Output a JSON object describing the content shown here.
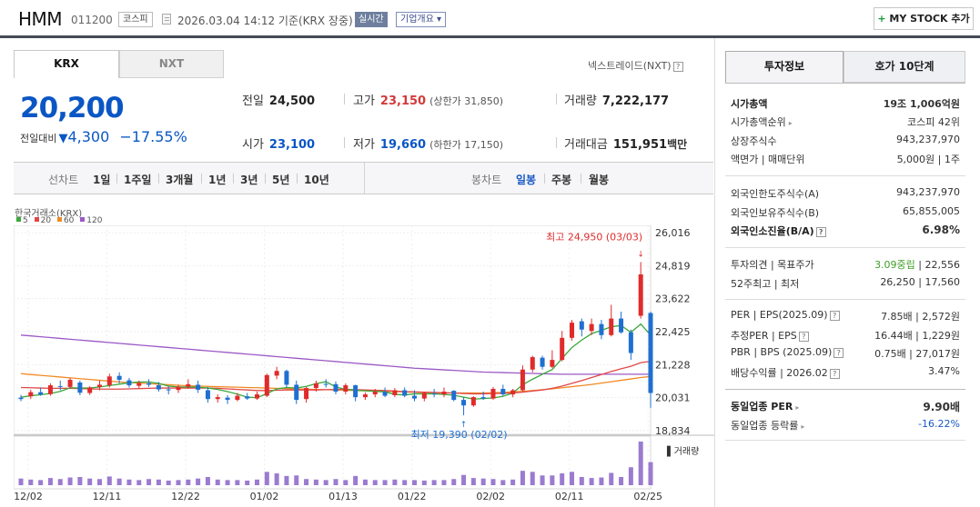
{
  "header": {
    "name": "HMM",
    "code": "011200",
    "market": "코스피",
    "date": "2026.03.04 14:12  기준(KRX 장중)",
    "realtime": "실시간",
    "overview": "기업개요 ▾",
    "mystock_plus": "+",
    "mystock_label": " MY STOCK 추가"
  },
  "tabs": {
    "krx": "KRX",
    "nxt": "NXT"
  },
  "nxt_link": "넥스트레이드(NXT)",
  "quote": {
    "price": "20,200",
    "change_label": "전일대비",
    "change_arrow": "▼",
    "change": "4,300",
    "change_pct": "−17.55%"
  },
  "stats": {
    "prev_close_label": "전일",
    "prev_close": "24,500",
    "open_label": "시가",
    "open": "23,100",
    "high_label": "고가",
    "high": "23,150",
    "upper_limit": "(상한가 31,850)",
    "low_label": "저가",
    "low": "19,660",
    "lower_limit": "(하한가 17,150)",
    "volume_label": "거래량",
    "volume": "7,222,177",
    "amount_label": "거래대금",
    "amount": "151,951",
    "amount_unit": "백만"
  },
  "chart_toolbar": {
    "periods_label": "선차트",
    "periods": [
      "1일",
      "1주일",
      "3개월",
      "1년",
      "3년",
      "5년",
      "10년"
    ],
    "candles_label": "봉차트",
    "candles": [
      "일봉",
      "주봉",
      "월봉"
    ],
    "active_candle": "일봉"
  },
  "chart_meta": {
    "exchange": "한국거래소(KRX)",
    "ma_colors": {
      "5": "#3aa83a",
      "20": "#e04848",
      "60": "#f08a24",
      "120": "#9b59c6"
    }
  },
  "chart_data": {
    "type": "candlestick",
    "legend": [
      "5",
      "20",
      "60",
      "120"
    ],
    "y_ticks": [
      "26,016",
      "24,819",
      "23,622",
      "22,425",
      "21,228",
      "20,031",
      "18,834"
    ],
    "ylim": [
      18834,
      26016
    ],
    "x_ticks": [
      "12/02",
      "12/11",
      "12/22",
      "01/02",
      "01/13",
      "01/22",
      "02/02",
      "02/11",
      "02/25"
    ],
    "high_annotation": "최고 24,950 (03/03)",
    "low_annotation": "최저 19,390 (02/02)",
    "volume_label": "거래량",
    "candles": [
      {
        "o": 20030,
        "h": 20130,
        "l": 19900,
        "c": 19980
      },
      {
        "o": 20080,
        "h": 20320,
        "l": 19980,
        "c": 20230
      },
      {
        "o": 20230,
        "h": 20400,
        "l": 20100,
        "c": 20140
      },
      {
        "o": 20160,
        "h": 20550,
        "l": 20100,
        "c": 20480
      },
      {
        "o": 20450,
        "h": 20650,
        "l": 20300,
        "c": 20430
      },
      {
        "o": 20420,
        "h": 20750,
        "l": 20350,
        "c": 20680
      },
      {
        "o": 20580,
        "h": 20650,
        "l": 20120,
        "c": 20210
      },
      {
        "o": 20200,
        "h": 20450,
        "l": 20130,
        "c": 20400
      },
      {
        "o": 20420,
        "h": 20650,
        "l": 20300,
        "c": 20500
      },
      {
        "o": 20480,
        "h": 20900,
        "l": 20400,
        "c": 20800
      },
      {
        "o": 20820,
        "h": 20950,
        "l": 20550,
        "c": 20680
      },
      {
        "o": 20660,
        "h": 20750,
        "l": 20400,
        "c": 20480
      },
      {
        "o": 20460,
        "h": 20650,
        "l": 20380,
        "c": 20560
      },
      {
        "o": 20560,
        "h": 20700,
        "l": 20420,
        "c": 20500
      },
      {
        "o": 20480,
        "h": 20600,
        "l": 20250,
        "c": 20330
      },
      {
        "o": 20330,
        "h": 20450,
        "l": 20150,
        "c": 20300
      },
      {
        "o": 20310,
        "h": 20500,
        "l": 20200,
        "c": 20430
      },
      {
        "o": 20430,
        "h": 20700,
        "l": 20350,
        "c": 20520
      },
      {
        "o": 20500,
        "h": 20650,
        "l": 20200,
        "c": 20320
      },
      {
        "o": 20300,
        "h": 20420,
        "l": 19850,
        "c": 19980
      },
      {
        "o": 19980,
        "h": 20150,
        "l": 19850,
        "c": 20050
      },
      {
        "o": 20030,
        "h": 20120,
        "l": 19800,
        "c": 19950
      },
      {
        "o": 19950,
        "h": 20200,
        "l": 19900,
        "c": 20100
      },
      {
        "o": 20080,
        "h": 20200,
        "l": 19950,
        "c": 20000
      },
      {
        "o": 20000,
        "h": 20250,
        "l": 19950,
        "c": 20150
      },
      {
        "o": 20100,
        "h": 20900,
        "l": 20050,
        "c": 20850
      },
      {
        "o": 20830,
        "h": 21150,
        "l": 20700,
        "c": 21000
      },
      {
        "o": 21000,
        "h": 21050,
        "l": 20400,
        "c": 20500
      },
      {
        "o": 20500,
        "h": 20650,
        "l": 19800,
        "c": 19950
      },
      {
        "o": 19980,
        "h": 20420,
        "l": 19850,
        "c": 20380
      },
      {
        "o": 20380,
        "h": 20650,
        "l": 20250,
        "c": 20550
      },
      {
        "o": 20530,
        "h": 20700,
        "l": 20400,
        "c": 20500
      },
      {
        "o": 20520,
        "h": 20620,
        "l": 20150,
        "c": 20250
      },
      {
        "o": 20250,
        "h": 20550,
        "l": 20150,
        "c": 20480
      },
      {
        "o": 20480,
        "h": 20500,
        "l": 19900,
        "c": 20050
      },
      {
        "o": 20050,
        "h": 20220,
        "l": 19950,
        "c": 20150
      },
      {
        "o": 20150,
        "h": 20350,
        "l": 20050,
        "c": 20250
      },
      {
        "o": 20240,
        "h": 20400,
        "l": 20050,
        "c": 20100
      },
      {
        "o": 20120,
        "h": 20380,
        "l": 20050,
        "c": 20300
      },
      {
        "o": 20300,
        "h": 20400,
        "l": 20050,
        "c": 20100
      },
      {
        "o": 20100,
        "h": 20300,
        "l": 19900,
        "c": 20000
      },
      {
        "o": 20000,
        "h": 20250,
        "l": 19900,
        "c": 20200
      },
      {
        "o": 20180,
        "h": 20350,
        "l": 20050,
        "c": 20150
      },
      {
        "o": 20150,
        "h": 20400,
        "l": 20050,
        "c": 20250
      },
      {
        "o": 20280,
        "h": 20300,
        "l": 19900,
        "c": 19950
      },
      {
        "o": 19950,
        "h": 20050,
        "l": 19390,
        "c": 19750
      },
      {
        "o": 19750,
        "h": 20080,
        "l": 19700,
        "c": 20050
      },
      {
        "o": 20050,
        "h": 20250,
        "l": 19950,
        "c": 20000
      },
      {
        "o": 20000,
        "h": 20420,
        "l": 19950,
        "c": 20350
      },
      {
        "o": 20350,
        "h": 20500,
        "l": 20100,
        "c": 20150
      },
      {
        "o": 20150,
        "h": 20350,
        "l": 20050,
        "c": 20300
      },
      {
        "o": 20300,
        "h": 21200,
        "l": 20250,
        "c": 21050
      },
      {
        "o": 21050,
        "h": 21550,
        "l": 20950,
        "c": 21500
      },
      {
        "o": 21480,
        "h": 21550,
        "l": 21050,
        "c": 21150
      },
      {
        "o": 21150,
        "h": 21750,
        "l": 21100,
        "c": 21400
      },
      {
        "o": 21400,
        "h": 22450,
        "l": 21350,
        "c": 22200
      },
      {
        "o": 22200,
        "h": 22850,
        "l": 22100,
        "c": 22750
      },
      {
        "o": 22800,
        "h": 22900,
        "l": 22250,
        "c": 22500
      },
      {
        "o": 22450,
        "h": 22900,
        "l": 22300,
        "c": 22700
      },
      {
        "o": 22700,
        "h": 22850,
        "l": 22150,
        "c": 22300
      },
      {
        "o": 22300,
        "h": 23400,
        "l": 22250,
        "c": 22900
      },
      {
        "o": 22900,
        "h": 23150,
        "l": 22350,
        "c": 22400
      },
      {
        "o": 22400,
        "h": 22500,
        "l": 21400,
        "c": 21650
      },
      {
        "o": 23000,
        "h": 24950,
        "l": 22900,
        "c": 24500
      },
      {
        "o": 23100,
        "h": 23150,
        "l": 19660,
        "c": 20200
      }
    ],
    "ma": {
      "5": [
        20050,
        20100,
        20140,
        20180,
        20260,
        20390,
        20380,
        20380,
        20420,
        20470,
        20520,
        20570,
        20600,
        20600,
        20550,
        20450,
        20420,
        20420,
        20410,
        20380,
        20330,
        20250,
        20160,
        20050,
        20030,
        20180,
        20350,
        20400,
        20380,
        20440,
        20540,
        20610,
        20420,
        20330,
        20300,
        20280,
        20260,
        20240,
        20150,
        20130,
        20170,
        20170,
        20170,
        20150,
        20120,
        20050,
        19980,
        20000,
        20020,
        20080,
        20200,
        20500,
        20700,
        20880,
        21050,
        21450,
        21850,
        22120,
        22350,
        22470,
        22600,
        22650,
        22400,
        22700,
        22300
      ],
      "20": [
        20400,
        20390,
        20380,
        20370,
        20370,
        20370,
        20360,
        20350,
        20340,
        20340,
        20340,
        20350,
        20360,
        20370,
        20380,
        20380,
        20380,
        20380,
        20380,
        20380,
        20370,
        20350,
        20330,
        20310,
        20290,
        20290,
        20300,
        20310,
        20310,
        20310,
        20310,
        20320,
        20330,
        20330,
        20320,
        20310,
        20300,
        20290,
        20270,
        20250,
        20240,
        20230,
        20220,
        20210,
        20200,
        20180,
        20170,
        20170,
        20180,
        20190,
        20200,
        20230,
        20270,
        20310,
        20370,
        20450,
        20550,
        20650,
        20760,
        20870,
        20980,
        21080,
        21170,
        21300,
        21350
      ],
      "60": [
        20900,
        20870,
        20840,
        20810,
        20780,
        20750,
        20720,
        20690,
        20660,
        20630,
        20600,
        20580,
        20560,
        20540,
        20520,
        20500,
        20480,
        20460,
        20450,
        20440,
        20430,
        20420,
        20410,
        20400,
        20390,
        20380,
        20370,
        20360,
        20350,
        20340,
        20330,
        20320,
        20310,
        20300,
        20290,
        20280,
        20270,
        20260,
        20250,
        20240,
        20230,
        20220,
        20210,
        20200,
        20200,
        20200,
        20200,
        20200,
        20210,
        20220,
        20240,
        20260,
        20290,
        20320,
        20350,
        20390,
        20430,
        20470,
        20510,
        20560,
        20610,
        20660,
        20710,
        20760,
        20800
      ],
      "120": [
        22300,
        22270,
        22240,
        22210,
        22180,
        22150,
        22120,
        22090,
        22060,
        22030,
        22000,
        21970,
        21940,
        21910,
        21880,
        21850,
        21820,
        21790,
        21760,
        21730,
        21700,
        21670,
        21640,
        21610,
        21580,
        21550,
        21520,
        21490,
        21460,
        21430,
        21400,
        21370,
        21340,
        21310,
        21280,
        21250,
        21220,
        21190,
        21160,
        21130,
        21100,
        21080,
        21060,
        21040,
        21020,
        21000,
        20980,
        20960,
        20950,
        20940,
        20930,
        20920,
        20910,
        20900,
        20890,
        20880,
        20880,
        20880,
        20880,
        20880,
        20880,
        20880,
        20880,
        20880,
        20880
      ]
    },
    "volume": [
      1.3,
      1.1,
      1.0,
      1.4,
      1.2,
      1.5,
      1.6,
      1.3,
      1.2,
      1.7,
      1.3,
      1.1,
      1.0,
      1.2,
      1.1,
      0.9,
      1.0,
      1.1,
      1.3,
      1.6,
      1.1,
      1.0,
      1.0,
      0.9,
      1.1,
      2.6,
      2.3,
      1.8,
      1.9,
      1.2,
      1.1,
      1.0,
      1.2,
      1.0,
      1.8,
      1.1,
      1.0,
      1.0,
      1.1,
      1.0,
      1.0,
      0.9,
      1.0,
      1.0,
      1.2,
      2.0,
      1.4,
      1.3,
      1.2,
      1.0,
      1.1,
      2.8,
      2.6,
      1.9,
      1.9,
      2.3,
      2.6,
      1.6,
      1.4,
      1.5,
      2.4,
      1.6,
      3.5,
      8.5,
      4.5
    ]
  },
  "invest_info": {
    "tab_invest": "투자정보",
    "tab_hoga": "호가 10단계",
    "market_cap_label": "시가총액",
    "market_cap": "19조 1,006억원",
    "market_cap_rank_label": "시가총액순위",
    "market_cap_rank": "코스피 42위",
    "listed_shares_label": "상장주식수",
    "listed_shares": "943,237,970",
    "par_label": "액면가 | 매매단위",
    "par": "5,000원 | 1주",
    "foreign_limit_label": "외국인한도주식수(A)",
    "foreign_limit": "943,237,970",
    "foreign_hold_label": "외국인보유주식수(B)",
    "foreign_hold": "65,855,005",
    "foreign_ratio_label": "외국인소진율(B/A)",
    "foreign_ratio": "6.98%",
    "opinion_label": "투자의견 | 목표주가",
    "opinion": "3.09중립",
    "target": "| 22,556",
    "week52_label": "52주최고 | 최저",
    "week52": "26,250 | 17,560",
    "per_label": "PER | EPS(2025.09)",
    "per": "7.85배 | 2,572원",
    "est_per_label": "추정PER | EPS",
    "est_per": "16.44배 | 1,229원",
    "pbr_label": "PBR | BPS (2025.09)",
    "pbr": "0.75배 | 27,017원",
    "div_label": "배당수익률 | 2026.02",
    "div": "3.47%",
    "ind_per_label": "동일업종 PER",
    "ind_per": "9.90배",
    "ind_change_label": "동일업종 등락률",
    "ind_change": "-16.22%"
  }
}
